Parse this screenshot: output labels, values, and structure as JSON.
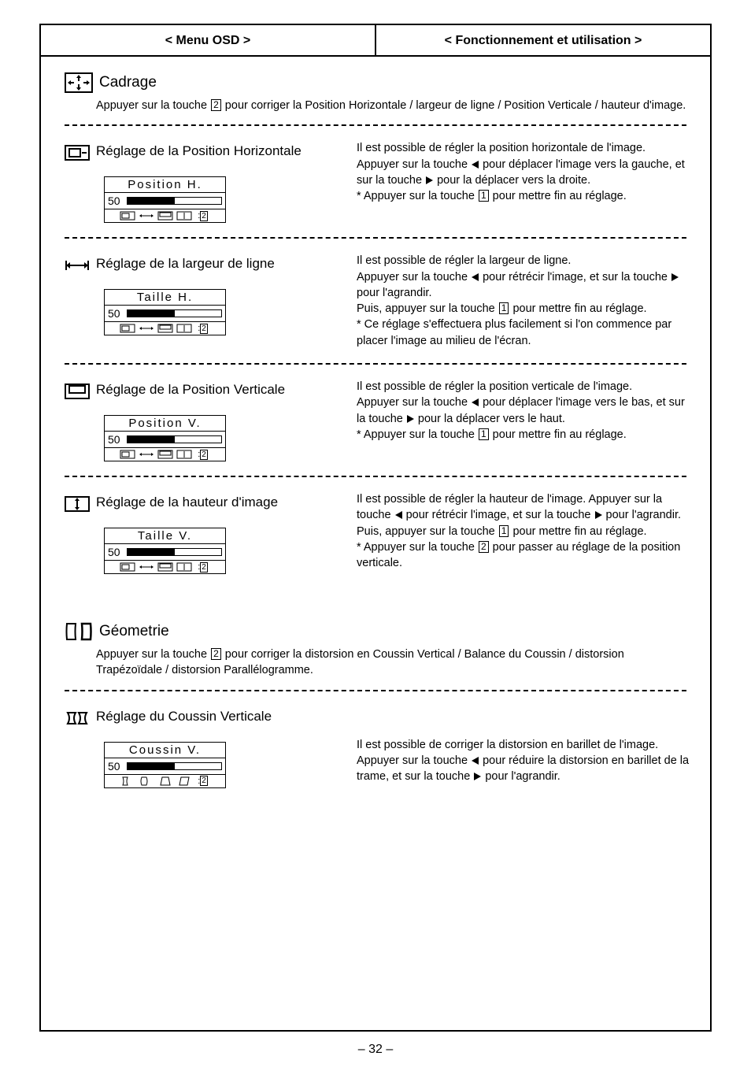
{
  "header": {
    "left": "< Menu OSD >",
    "right": "< Fonctionnement et utilisation >"
  },
  "cadrage": {
    "title": "Cadrage",
    "desc_a": "Appuyer sur la touche ",
    "desc_key": "2",
    "desc_b": " pour corriger la Position Horizontale / largeur de ligne / Position Verticale / hauteur d'image.",
    "items": [
      {
        "title": "Réglage de la Position Horizontale",
        "osd_label": "Position H.",
        "osd_value": "50",
        "osd_fill_pct": 50,
        "right_lines": [
          "Il est possible de régler la position horizontale de l'image.",
          "Appuyer sur la touche ◀ pour déplacer l'image vers la gauche, et sur la touche ▶ pour la déplacer vers la droite."
        ],
        "right_note_a": "* Appuyer sur la touche ",
        "right_note_key": "1",
        "right_note_b": " pour mettre fin au réglage.",
        "icon": "hpos"
      },
      {
        "title": "Réglage de la largeur de ligne",
        "osd_label": "Taille H.",
        "osd_value": "50",
        "osd_fill_pct": 50,
        "right_lines": [
          "Il est possible de régler la largeur de ligne.",
          "Appuyer sur la touche ◀ pour rétrécir l'image, et sur la touche ▶ pour l'agrandir."
        ],
        "right_note_a": "Puis, appuyer sur la touche ",
        "right_note_key": "1",
        "right_note_b": " pour mettre fin au réglage.",
        "right_extra": "* Ce réglage s'effectuera plus facilement si l'on commence par placer l'image au milieu de l'écran.",
        "icon": "hsize"
      },
      {
        "title": "Réglage de la Position Verticale",
        "osd_label": "Position V.",
        "osd_value": "50",
        "osd_fill_pct": 50,
        "right_lines": [
          "Il est possible de régler la position verticale de l'image.",
          "Appuyer sur la touche ◀ pour déplacer l'image vers le bas, et sur la touche ▶ pour la déplacer vers le haut."
        ],
        "right_note_a": "* Appuyer sur la touche ",
        "right_note_key": "1",
        "right_note_b": " pour mettre fin au réglage.",
        "icon": "vpos"
      },
      {
        "title": "Réglage de la hauteur d'image",
        "osd_label": "Taille V.",
        "osd_value": "50",
        "osd_fill_pct": 50,
        "right_lines": [
          "Il est possible de régler la hauteur de l'image. Appuyer sur la touche ◀ pour rétrécir l'image, et sur la touche ▶ pour l'agrandir."
        ],
        "right_note_a": "Puis, appuyer sur la touche ",
        "right_note_key": "1",
        "right_note_b": " pour mettre fin au réglage.",
        "right_extra_a": "* Appuyer sur la touche ",
        "right_extra_key": "2",
        "right_extra_b": " pour passer au réglage de la position verticale.",
        "icon": "vsize"
      }
    ]
  },
  "geometrie": {
    "title": "Géometrie",
    "desc_a": "Appuyer sur la touche ",
    "desc_key": "2",
    "desc_b": " pour corriger la distorsion en Coussin Vertical / Balance du Coussin / distorsion Trapézoïdale / distorsion Parallélogramme.",
    "items": [
      {
        "title": "Réglage du Coussin Verticale",
        "osd_label": "Coussin V.",
        "osd_value": "50",
        "osd_fill_pct": 50,
        "right_lines": [
          "Il est possible de corriger la distorsion en barillet de l'image.",
          "Appuyer sur la touche ◀ pour réduire la distorsion en barillet de la trame, et sur la touche ▶ pour l'agrandir."
        ],
        "icon": "pincushion"
      }
    ]
  },
  "page_number": "– 32 –"
}
